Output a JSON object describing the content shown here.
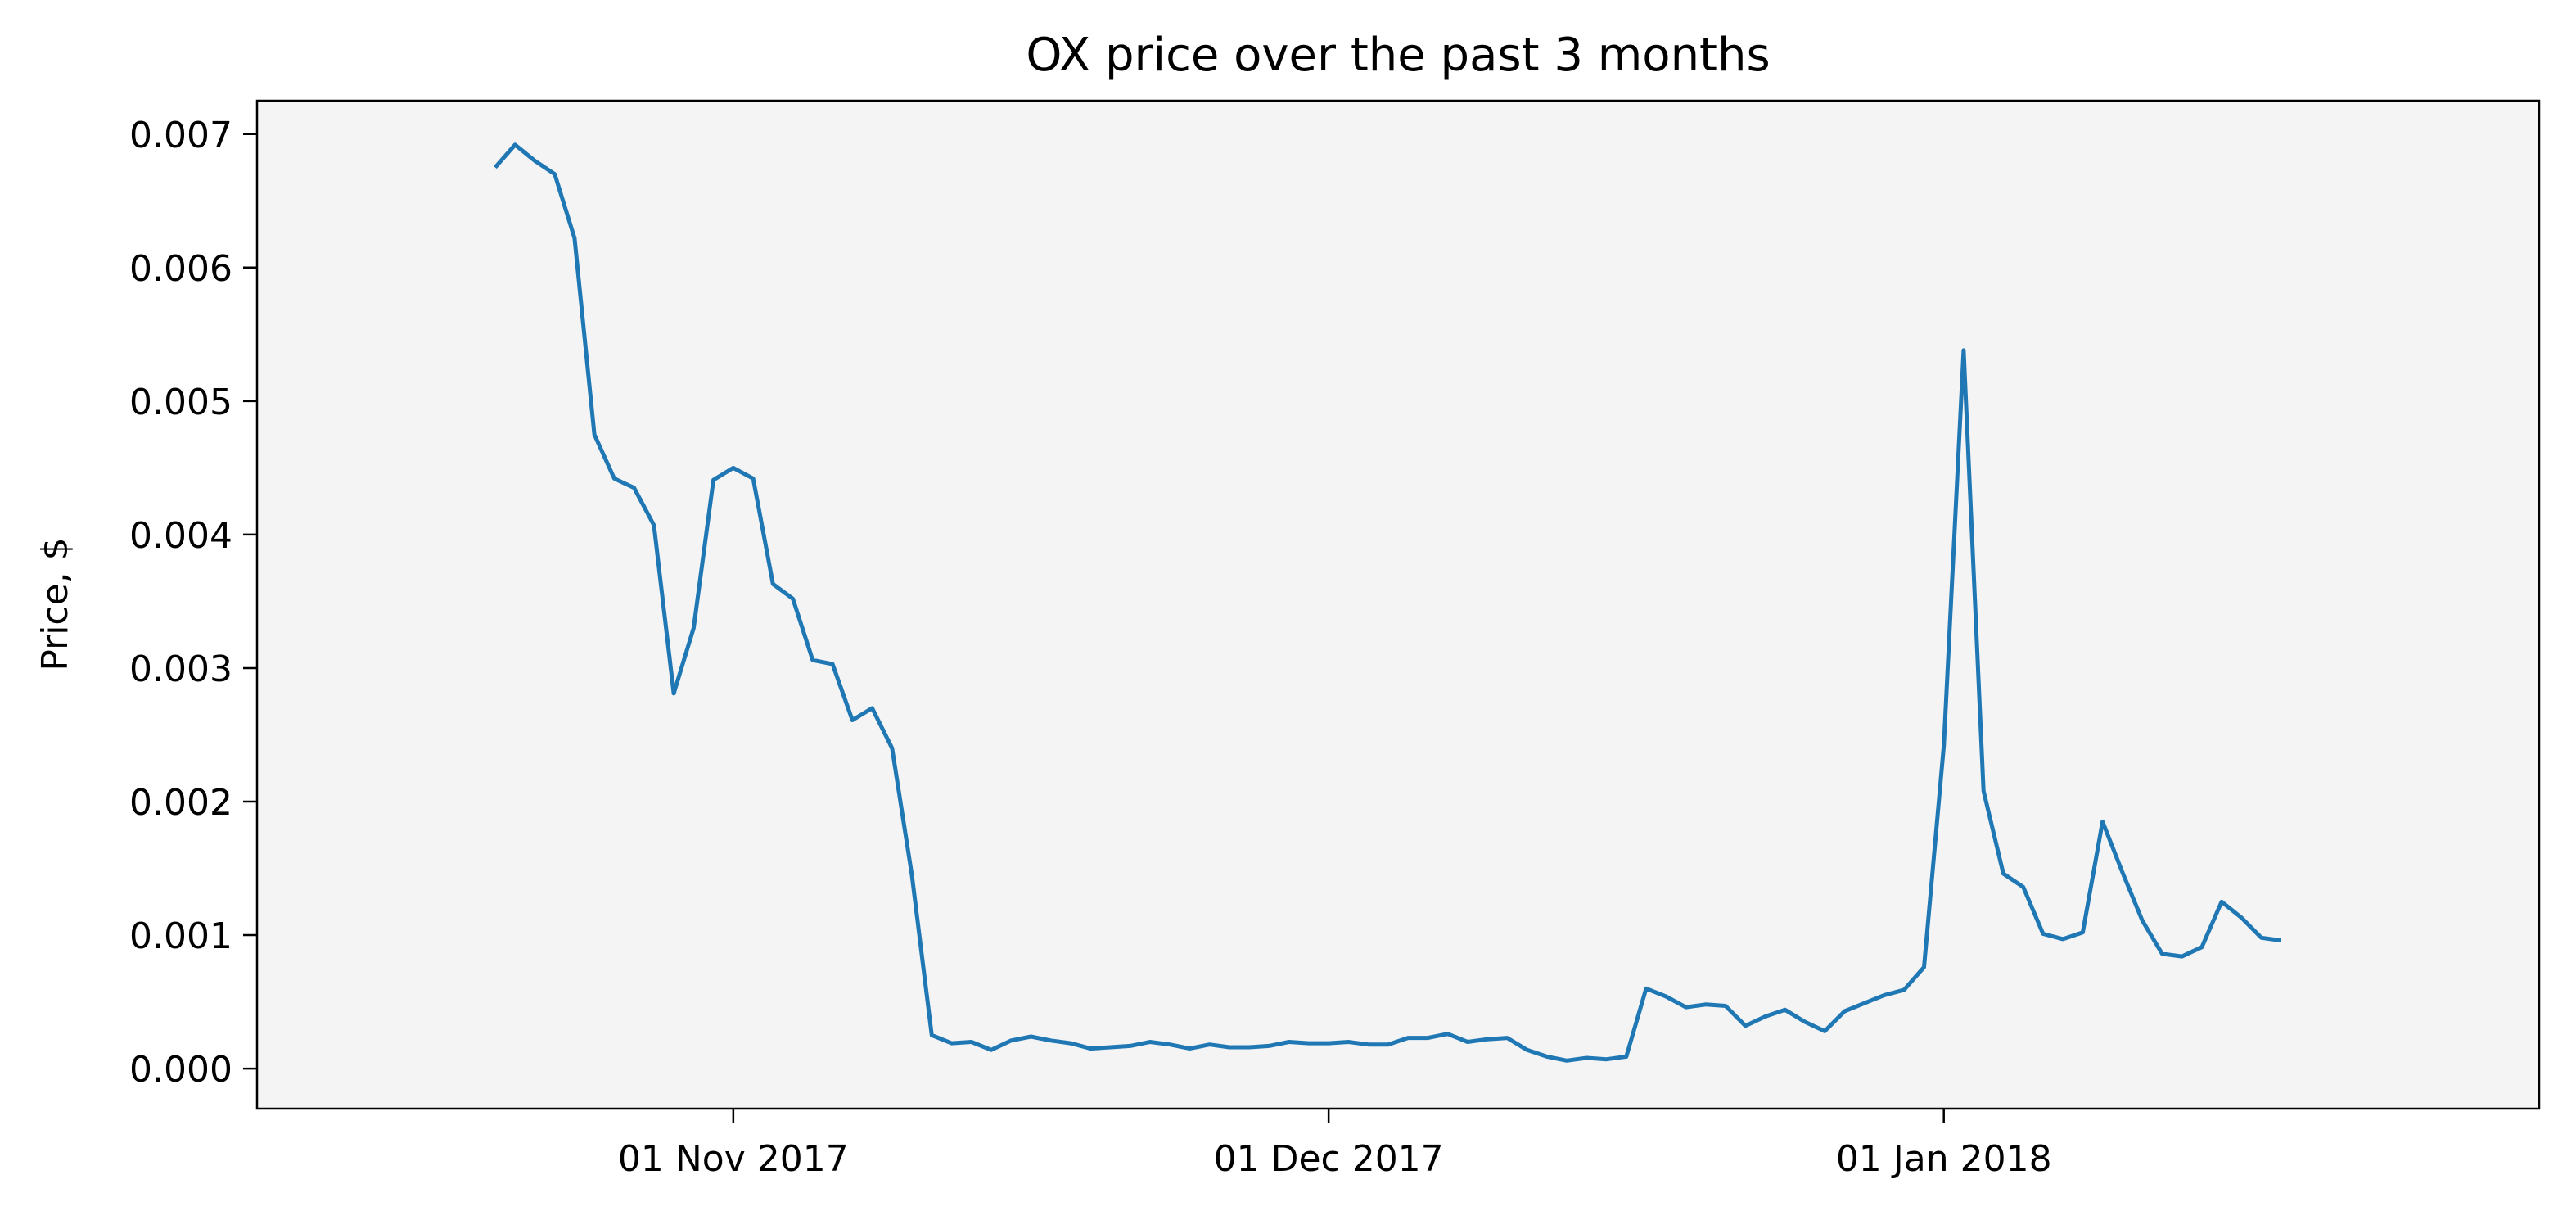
{
  "chart_data": {
    "type": "line",
    "title": "OX price over the past 3 months",
    "xlabel": "",
    "ylabel": "Price, $",
    "x_start": "2017-10-20",
    "x_step_days": 1,
    "x_ticks": [
      {
        "date": "2017-11-01",
        "label": "01 Nov 2017"
      },
      {
        "date": "2017-12-01",
        "label": "01 Dec 2017"
      },
      {
        "date": "2018-01-01",
        "label": "01 Jan 2018"
      }
    ],
    "xlim": [
      "2017-10-08",
      "2018-01-31"
    ],
    "ylim": [
      -0.0003,
      0.00725
    ],
    "y_ticks": [
      "0.000",
      "0.001",
      "0.002",
      "0.003",
      "0.004",
      "0.005",
      "0.006",
      "0.007"
    ],
    "plot_background": "#f4f4f5",
    "grid": false,
    "series": [
      {
        "color": "#1f77b4",
        "values": [
          0.00675,
          0.00692,
          0.0068,
          0.0067,
          0.00622,
          0.00475,
          0.00442,
          0.00435,
          0.00407,
          0.00281,
          0.0033,
          0.00441,
          0.0045,
          0.00442,
          0.00363,
          0.00352,
          0.00306,
          0.00303,
          0.00261,
          0.0027,
          0.0024,
          0.00145,
          0.00025,
          0.00019,
          0.0002,
          0.00014,
          0.00021,
          0.00024,
          0.00021,
          0.00019,
          0.00015,
          0.00016,
          0.00017,
          0.0002,
          0.00018,
          0.00015,
          0.00018,
          0.00016,
          0.00016,
          0.00017,
          0.0002,
          0.00019,
          0.00019,
          0.0002,
          0.00018,
          0.00018,
          0.00023,
          0.00023,
          0.00026,
          0.0002,
          0.00022,
          0.00023,
          0.00014,
          9e-05,
          6e-05,
          8e-05,
          7e-05,
          9e-05,
          0.0006,
          0.00054,
          0.00046,
          0.00048,
          0.00047,
          0.00032,
          0.00039,
          0.00044,
          0.00035,
          0.00028,
          0.00043,
          0.00049,
          0.00055,
          0.00059,
          0.00076,
          0.00242,
          0.00538,
          0.00208,
          0.00146,
          0.00136,
          0.00101,
          0.00097,
          0.00102,
          0.00185,
          0.00147,
          0.00111,
          0.00086,
          0.00084,
          0.00091,
          0.00125,
          0.00113,
          0.00098,
          0.00096
        ]
      }
    ]
  }
}
